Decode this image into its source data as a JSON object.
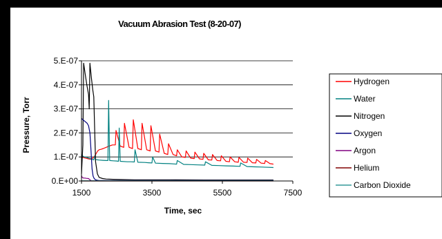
{
  "chart_data": {
    "type": "line",
    "title": "Vacuum Abrasion Test (8-20-07)",
    "xlabel": "Time, sec",
    "ylabel": "Pressure, Torr",
    "xlim": [
      1500,
      7500
    ],
    "ylim": [
      0,
      5e-07
    ],
    "xticks": [
      1500,
      3500,
      5500,
      7500
    ],
    "xtick_labels": [
      "1500",
      "3500",
      "5500",
      "7500"
    ],
    "yticks": [
      0,
      1e-07,
      2e-07,
      3e-07,
      4e-07,
      5e-07
    ],
    "ytick_labels": [
      "0.E+00",
      "1.E-07",
      "2.E-07",
      "3.E-07",
      "4.E-07",
      "5.E-07"
    ],
    "grid": "horizontal",
    "legend": "right",
    "series": [
      {
        "name": "Hydrogen",
        "color": "#ff0000",
        "x": [
          1500,
          1560,
          1620,
          1700,
          1780,
          1820,
          1880,
          1920,
          1960,
          2000,
          2060,
          2120,
          2200,
          2280,
          2380,
          2460,
          2480,
          2600,
          2700,
          2720,
          2850,
          2950,
          2970,
          3100,
          3200,
          3220,
          3350,
          3450,
          3470,
          3600,
          3700,
          3720,
          3850,
          3950,
          3970,
          4100,
          4200,
          4220,
          4350,
          4450,
          4470,
          4600,
          4700,
          4720,
          4850,
          4950,
          4970,
          5100,
          5200,
          5220,
          5350,
          5450,
          5470,
          5600,
          5700,
          5720,
          5850,
          5950,
          5970,
          6100,
          6200,
          6220,
          6350,
          6450,
          6470,
          6600,
          6700,
          6720,
          6850,
          6950
        ],
        "y": [
          1e-07,
          9.7e-08,
          9.5e-08,
          9.2e-08,
          9e-08,
          9.5e-08,
          1.05e-07,
          1.15e-07,
          1.25e-07,
          1.3e-07,
          1.32e-07,
          1.35e-07,
          1.4e-07,
          1.45e-07,
          1.5e-07,
          1.5e-07,
          2.1e-07,
          1.45e-07,
          1.4e-07,
          2.4e-07,
          1.4e-07,
          1.35e-07,
          2.55e-07,
          1.35e-07,
          1.3e-07,
          2.4e-07,
          1.3e-07,
          1.25e-07,
          2.3e-07,
          1.25e-07,
          1.2e-07,
          1.95e-07,
          1.15e-07,
          1.1e-07,
          1.55e-07,
          1.1e-07,
          1.05e-07,
          1.3e-07,
          1e-07,
          9.8e-08,
          1.25e-07,
          9.5e-08,
          9.3e-08,
          1.2e-07,
          9.2e-08,
          9e-08,
          1.15e-07,
          8.8e-08,
          8.7e-08,
          1.1e-07,
          8.5e-08,
          8.4e-08,
          1.05e-07,
          8.2e-08,
          8e-08,
          1e-07,
          8e-08,
          7.8e-08,
          9.8e-08,
          7.8e-08,
          7.7e-08,
          9.5e-08,
          7.6e-08,
          7.5e-08,
          9e-08,
          7.4e-08,
          7.3e-08,
          8.5e-08,
          7.2e-08,
          7e-08
        ]
      },
      {
        "name": "Water",
        "color": "#008080",
        "x": [
          1500,
          1520,
          1580,
          1650,
          1700,
          1750,
          1800,
          1850,
          1880,
          1900,
          1950,
          2000,
          2100,
          2200,
          2250,
          2270,
          2300,
          2400,
          2500,
          2550,
          2570,
          2600,
          2800,
          2900,
          3000,
          3020,
          3100,
          3300,
          3400,
          3500,
          3520,
          3600,
          3800,
          4000,
          4200,
          4220,
          4400,
          4600,
          4800,
          5000,
          5020,
          5200,
          5400,
          5600,
          5800,
          6000,
          6020,
          6200,
          6400,
          6600,
          6800,
          6950
        ],
        "y": [
          1.1e-07,
          1.05e-07,
          1e-07,
          9.8e-08,
          9.5e-08,
          9.3e-08,
          9e-08,
          8.8e-08,
          1.05e-07,
          9e-08,
          8.8e-08,
          8.7e-08,
          8.6e-08,
          8.5e-08,
          8.5e-08,
          3.35e-07,
          8.5e-08,
          8.4e-08,
          8.3e-08,
          8.2e-08,
          2.2e-07,
          8.2e-08,
          8e-08,
          8e-08,
          7.9e-08,
          1.3e-07,
          7.8e-08,
          7.7e-08,
          7.6e-08,
          7.5e-08,
          1e-07,
          7.4e-08,
          7.3e-08,
          7.2e-08,
          7e-08,
          8.5e-08,
          6.9e-08,
          6.8e-08,
          6.7e-08,
          6.6e-08,
          8e-08,
          6.5e-08,
          6.4e-08,
          6.3e-08,
          6.2e-08,
          6.1e-08,
          7.5e-08,
          6e-08,
          5.9e-08,
          5.8e-08,
          5.7e-08,
          5.6e-08
        ]
      },
      {
        "name": "Nitrogen",
        "color": "#000000",
        "x": [
          1500,
          1540,
          1560,
          1600,
          1650,
          1700,
          1720,
          1740,
          1780,
          1820,
          1850,
          1880,
          1900,
          1950,
          2000,
          2100,
          2200,
          2400,
          2600,
          3000,
          3500,
          4000,
          5000,
          6000,
          6950
        ],
        "y": [
          3e-08,
          1.5e-07,
          4.9e-07,
          4.5e-07,
          4e-07,
          3.6e-07,
          3e-07,
          4.9e-07,
          4.3e-07,
          3.8e-07,
          3.5e-07,
          1.8e-07,
          8e-08,
          3e-08,
          1.5e-08,
          1e-08,
          8e-09,
          7e-09,
          6e-09,
          5e-09,
          5e-09,
          5e-09,
          4e-09,
          4e-09,
          4e-09
        ]
      },
      {
        "name": "Oxygen",
        "color": "#000080",
        "x": [
          1500,
          1540,
          1580,
          1620,
          1660,
          1700,
          1740,
          1760,
          1780,
          1800,
          1830,
          1860,
          1900,
          1950,
          2000,
          2200,
          2500,
          3000,
          4000,
          5000,
          6000,
          6950
        ],
        "y": [
          2.6e-07,
          2.55e-07,
          2.5e-07,
          2.45e-07,
          2.4e-07,
          2.3e-07,
          2e-07,
          1.5e-07,
          1e-07,
          5e-08,
          2e-08,
          1e-08,
          5e-09,
          3e-09,
          2e-09,
          2e-09,
          2e-09,
          2e-09,
          2e-09,
          2e-09,
          2e-09,
          2e-09
        ]
      },
      {
        "name": "Argon",
        "color": "#800080",
        "x": [
          1500,
          1520,
          1560,
          1600,
          1640,
          1700,
          1740,
          1780,
          1850,
          2000,
          3000,
          4000,
          5000,
          6000,
          6950
        ],
        "y": [
          2.2e-08,
          1.5e-08,
          1.2e-08,
          1.2e-08,
          1.1e-08,
          1e-08,
          5e-09,
          1e-09,
          5e-10,
          3e-10,
          2e-10,
          2e-10,
          2e-10,
          2e-10,
          2e-10
        ]
      },
      {
        "name": "Helium",
        "color": "#800000",
        "x": [
          1500,
          3000,
          4500,
          6000,
          6950
        ],
        "y": [
          1e-10,
          1e-10,
          1e-10,
          1e-10,
          1e-10
        ]
      },
      {
        "name": "Carbon Dioxide",
        "color": "#339999",
        "x": [
          1500,
          2500,
          3500,
          4500,
          5500,
          6950
        ],
        "y": [
          1e-09,
          1e-09,
          1e-09,
          1e-09,
          1e-09,
          1e-09
        ]
      }
    ]
  }
}
